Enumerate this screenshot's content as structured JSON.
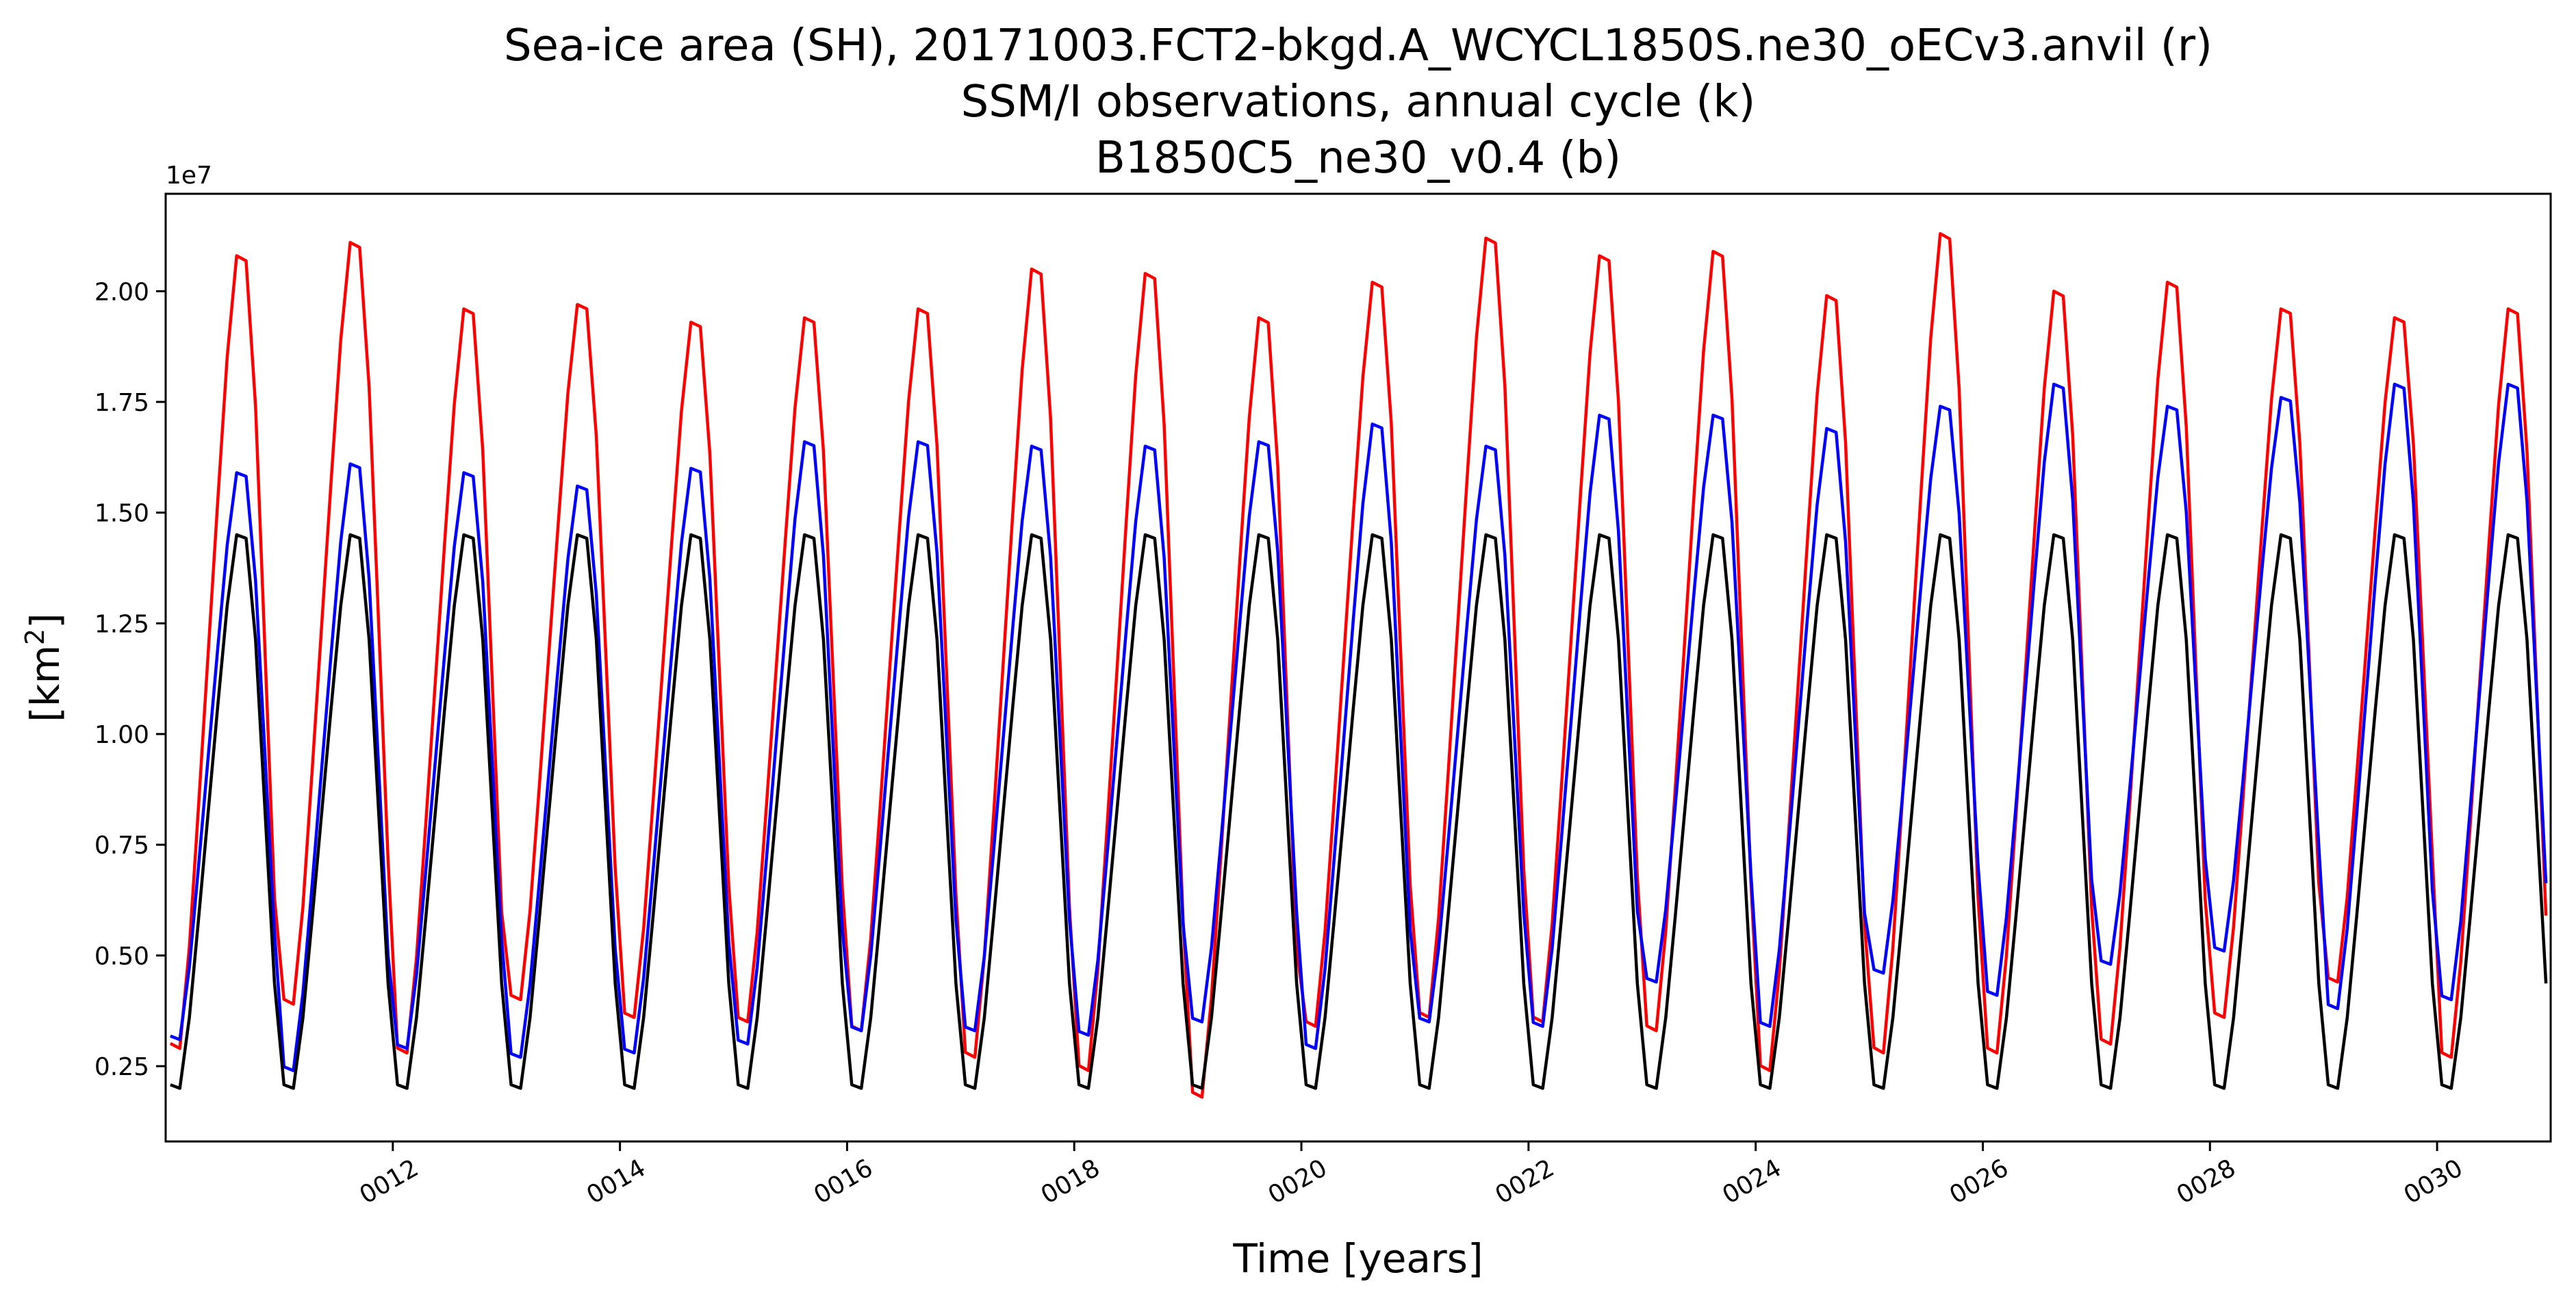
{
  "chart_data": {
    "type": "line",
    "title": [
      "Sea-ice area (SH), 20171003.FCT2-bkgd.A_WCYCL1850S.ne30_oECv3.anvil (r)",
      "SSM/I observations, annual cycle (k)",
      "B1850C5_ne30_v0.4 (b)"
    ],
    "xlabel": "Time [years]",
    "ylabel": "[km",
    "ylabel_sup": "2",
    "ylabel_end": "]",
    "y_offset_label": "1e7",
    "xlim": [
      10.0,
      31.0
    ],
    "ylim": [
      0.08,
      2.22
    ],
    "y_ticks": [
      0.25,
      0.5,
      0.75,
      1.0,
      1.25,
      1.5,
      1.75,
      2.0
    ],
    "y_tick_labels": [
      "0.25",
      "0.50",
      "0.75",
      "1.00",
      "1.25",
      "1.50",
      "1.75",
      "2.00"
    ],
    "x_ticks": [
      12,
      14,
      16,
      18,
      20,
      22,
      24,
      26,
      28,
      30
    ],
    "x_tick_labels": [
      "0012",
      "0014",
      "0016",
      "0018",
      "0020",
      "0022",
      "0024",
      "0026",
      "0028",
      "0030"
    ],
    "grid": false,
    "legend": "none",
    "years": [
      10,
      11,
      12,
      13,
      14,
      15,
      16,
      17,
      18,
      19,
      20,
      21,
      22,
      23,
      24,
      25,
      26,
      27,
      28,
      29,
      30
    ],
    "series": [
      {
        "color": "#ff0000",
        "annual_max": [
          2.08,
          2.11,
          1.96,
          1.97,
          1.93,
          1.94,
          1.96,
          2.05,
          2.04,
          1.94,
          2.02,
          2.12,
          2.08,
          2.09,
          1.99,
          2.13,
          2.0,
          2.02,
          1.96,
          1.94,
          1.96
        ],
        "annual_min": [
          0.29,
          0.39,
          0.28,
          0.4,
          0.36,
          0.35,
          0.33,
          0.27,
          0.24,
          0.18,
          0.34,
          0.36,
          0.35,
          0.33,
          0.24,
          0.28,
          0.28,
          0.3,
          0.36,
          0.44,
          0.27
        ]
      },
      {
        "color": "#0000ff",
        "annual_max": [
          1.59,
          1.61,
          1.59,
          1.56,
          1.6,
          1.66,
          1.66,
          1.65,
          1.65,
          1.66,
          1.7,
          1.65,
          1.72,
          1.72,
          1.69,
          1.74,
          1.79,
          1.74,
          1.76,
          1.79,
          1.79
        ],
        "annual_min": [
          0.31,
          0.24,
          0.29,
          0.27,
          0.28,
          0.3,
          0.33,
          0.33,
          0.32,
          0.35,
          0.29,
          0.35,
          0.34,
          0.44,
          0.34,
          0.46,
          0.41,
          0.48,
          0.51,
          0.38,
          0.4
        ]
      },
      {
        "color": "#000000",
        "annual_max": [
          1.45,
          1.45,
          1.45,
          1.45,
          1.45,
          1.45,
          1.45,
          1.45,
          1.45,
          1.45,
          1.45,
          1.45,
          1.45,
          1.45,
          1.45,
          1.45,
          1.45,
          1.45,
          1.45,
          1.45,
          1.45
        ],
        "annual_min": [
          0.2,
          0.2,
          0.2,
          0.2,
          0.2,
          0.2,
          0.2,
          0.2,
          0.2,
          0.2,
          0.2,
          0.2,
          0.2,
          0.2,
          0.2,
          0.2,
          0.2,
          0.2,
          0.2,
          0.2,
          0.2
        ]
      }
    ]
  }
}
